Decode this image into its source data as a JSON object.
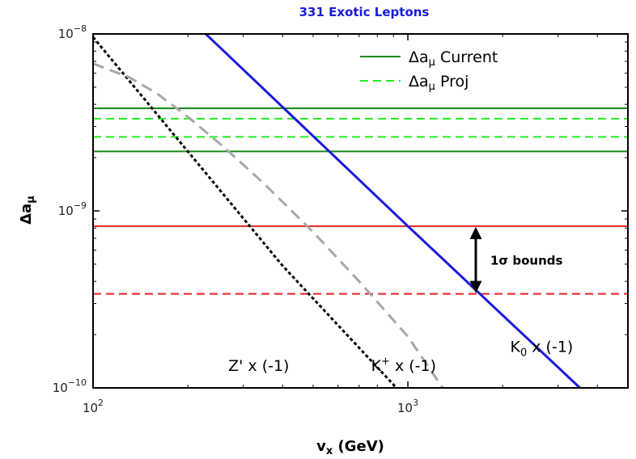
{
  "chart_data": {
    "type": "line",
    "title": "331 Exotic Leptons",
    "xlabel": "v",
    "xlabel_sub": "x",
    "xlabel_unit": " (GeV)",
    "ylabel": "Δa",
    "ylabel_sub": "μ",
    "x_scale": "log",
    "y_scale": "log",
    "xlim": [
      100,
      5000
    ],
    "ylim": [
      1e-10,
      1e-08
    ],
    "x_ticks": [
      {
        "value": 100,
        "base": "10",
        "exp": "2"
      },
      {
        "value": 1000,
        "base": "10",
        "exp": "3"
      }
    ],
    "y_ticks": [
      {
        "value": 1e-08,
        "base": "10",
        "exp": "−8"
      },
      {
        "value": 1e-09,
        "base": "10",
        "exp": "−9"
      },
      {
        "value": 1e-10,
        "base": "10",
        "exp": "−10"
      }
    ],
    "grid": false,
    "legend_position": "top-right",
    "legend": [
      {
        "label": "Δa",
        "sub": "μ",
        "suffix": " Current",
        "color": "#1a8a1a",
        "dash": "solid"
      },
      {
        "label": "Δa",
        "sub": "μ",
        "suffix": " Proj",
        "color": "#22ee22",
        "dash": "dashed"
      }
    ],
    "hlines": [
      {
        "y": 3.8e-09,
        "color": "#1a8a1a",
        "dash": "solid"
      },
      {
        "y": 2.17e-09,
        "color": "#1a8a1a",
        "dash": "solid"
      },
      {
        "y": 3.32e-09,
        "color": "#22ee22",
        "dash": "dashed"
      },
      {
        "y": 2.62e-09,
        "color": "#22ee22",
        "dash": "dashed"
      },
      {
        "y": 8.2e-10,
        "color": "#e82020",
        "dash": "solid"
      },
      {
        "y": 3.4e-10,
        "color": "#e82020",
        "dash": "dashed"
      }
    ],
    "series": [
      {
        "label_text": "Z' x (-1)",
        "color": "#000000",
        "dash": "dotted",
        "x": [
          100,
          400,
          920
        ],
        "y": [
          9.6e-09,
          4.9e-10,
          1e-10
        ],
        "label_anchor": {
          "x": 420,
          "y": 1.25e-10
        }
      },
      {
        "label_text": "x (-1)",
        "label_main": "K",
        "label_sup": "+",
        "color": "#a8a8a8",
        "dash": "dashed",
        "x": [
          100,
          130,
          160,
          200,
          260,
          350,
          500,
          700,
          1000,
          1290
        ],
        "y": [
          6.8e-09,
          5.7e-09,
          4.6e-09,
          3.4e-09,
          2.3e-09,
          1.42e-09,
          7.6e-10,
          4e-10,
          1.95e-10,
          1e-10
        ],
        "label_anchor": {
          "x": 1230,
          "y": 1.25e-10
        }
      },
      {
        "label_text": "x (-1)",
        "label_main": "K",
        "label_sub": "0",
        "color": "#1a1adc",
        "dash": "solid",
        "x": [
          228,
          1000,
          3520
        ],
        "y": [
          1e-08,
          8.2e-10,
          1e-10
        ],
        "label_anchor": {
          "x": 3350,
          "y": 1.6e-10
        }
      }
    ],
    "annotation": {
      "text": "1σ bounds",
      "x": 1850,
      "y_top": 8.2e-10,
      "y_bottom": 3.4e-10
    }
  }
}
